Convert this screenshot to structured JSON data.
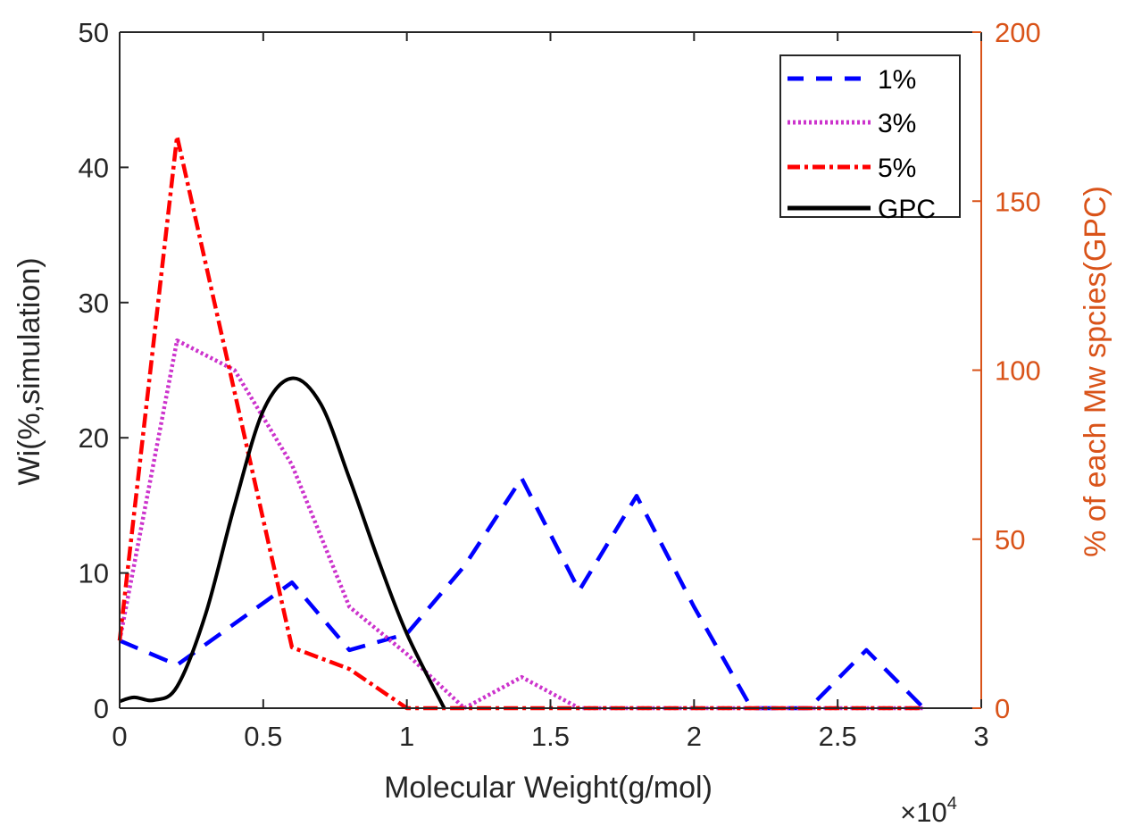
{
  "chart_data": {
    "type": "line",
    "title": "",
    "xlabel": "Molecular Weight(g/mol)",
    "x_multiplier": "×10^4",
    "x_multiplier_base": "×10",
    "x_multiplier_exp": "4",
    "ylabel": "Wi(%,simulation)",
    "ylabel_right": "% of each Mw spcies(GPC)",
    "xlim": [
      0,
      3
    ],
    "ylim": [
      0,
      50
    ],
    "ylim_right": [
      0,
      200
    ],
    "xticks": [
      0,
      0.5,
      1,
      1.5,
      2,
      2.5,
      3
    ],
    "xtick_labels": [
      "0",
      "0.5",
      "1",
      "1.5",
      "2",
      "2.5",
      "3"
    ],
    "yticks": [
      0,
      10,
      20,
      30,
      40,
      50
    ],
    "ytick_labels": [
      "0",
      "10",
      "20",
      "30",
      "40",
      "50"
    ],
    "yticks_right": [
      0,
      50,
      100,
      150,
      200
    ],
    "ytick_labels_right": [
      "0",
      "50",
      "100",
      "150",
      "200"
    ],
    "grid": false,
    "legend_position": "top-right",
    "colors": {
      "left_axis": "#262626",
      "right_axis": "#D95319"
    },
    "series": [
      {
        "name": "1%",
        "axis": "left",
        "color": "#0000FF",
        "style": "dashed",
        "x": [
          0,
          0.2,
          0.6,
          0.8,
          1.0,
          1.2,
          1.4,
          1.6,
          1.8,
          2.0,
          2.2,
          2.4,
          2.6,
          2.8
        ],
        "y": [
          5.0,
          3.2,
          9.3,
          4.3,
          5.5,
          10.5,
          17.0,
          8.7,
          15.7,
          7.5,
          0,
          0,
          4.3,
          0
        ]
      },
      {
        "name": "3%",
        "axis": "left",
        "color": "#CC33CC",
        "style": "dotted",
        "x": [
          0,
          0.2,
          0.4,
          0.6,
          0.8,
          1.0,
          1.2,
          1.4,
          1.6,
          1.8,
          2.0,
          2.2,
          2.4,
          2.6,
          2.8
        ],
        "y": [
          5.0,
          27.2,
          25.0,
          18.0,
          7.5,
          4.0,
          0,
          2.3,
          0,
          0,
          0,
          0,
          0,
          0,
          0
        ]
      },
      {
        "name": "5%",
        "axis": "left",
        "color": "#FF0000",
        "style": "dashdot",
        "x": [
          0,
          0.2,
          0.6,
          0.8,
          1.0,
          1.2,
          1.4,
          1.6,
          1.8,
          2.0,
          2.2,
          2.4,
          2.6,
          2.8
        ],
        "y": [
          5.0,
          42.3,
          4.5,
          2.9,
          0,
          0,
          0,
          0,
          0,
          0,
          0,
          0,
          0,
          0
        ]
      },
      {
        "name": "GPC",
        "axis": "left",
        "color": "#000000",
        "style": "solid",
        "x": [
          0,
          0.05,
          0.12,
          0.2,
          0.3,
          0.4,
          0.5,
          0.6,
          0.7,
          0.8,
          0.9,
          1.0,
          1.13
        ],
        "y": [
          0.5,
          0.8,
          0.6,
          1.6,
          7.0,
          15.0,
          22.0,
          24.4,
          22.5,
          17.0,
          11.0,
          5.5,
          0
        ]
      }
    ]
  }
}
